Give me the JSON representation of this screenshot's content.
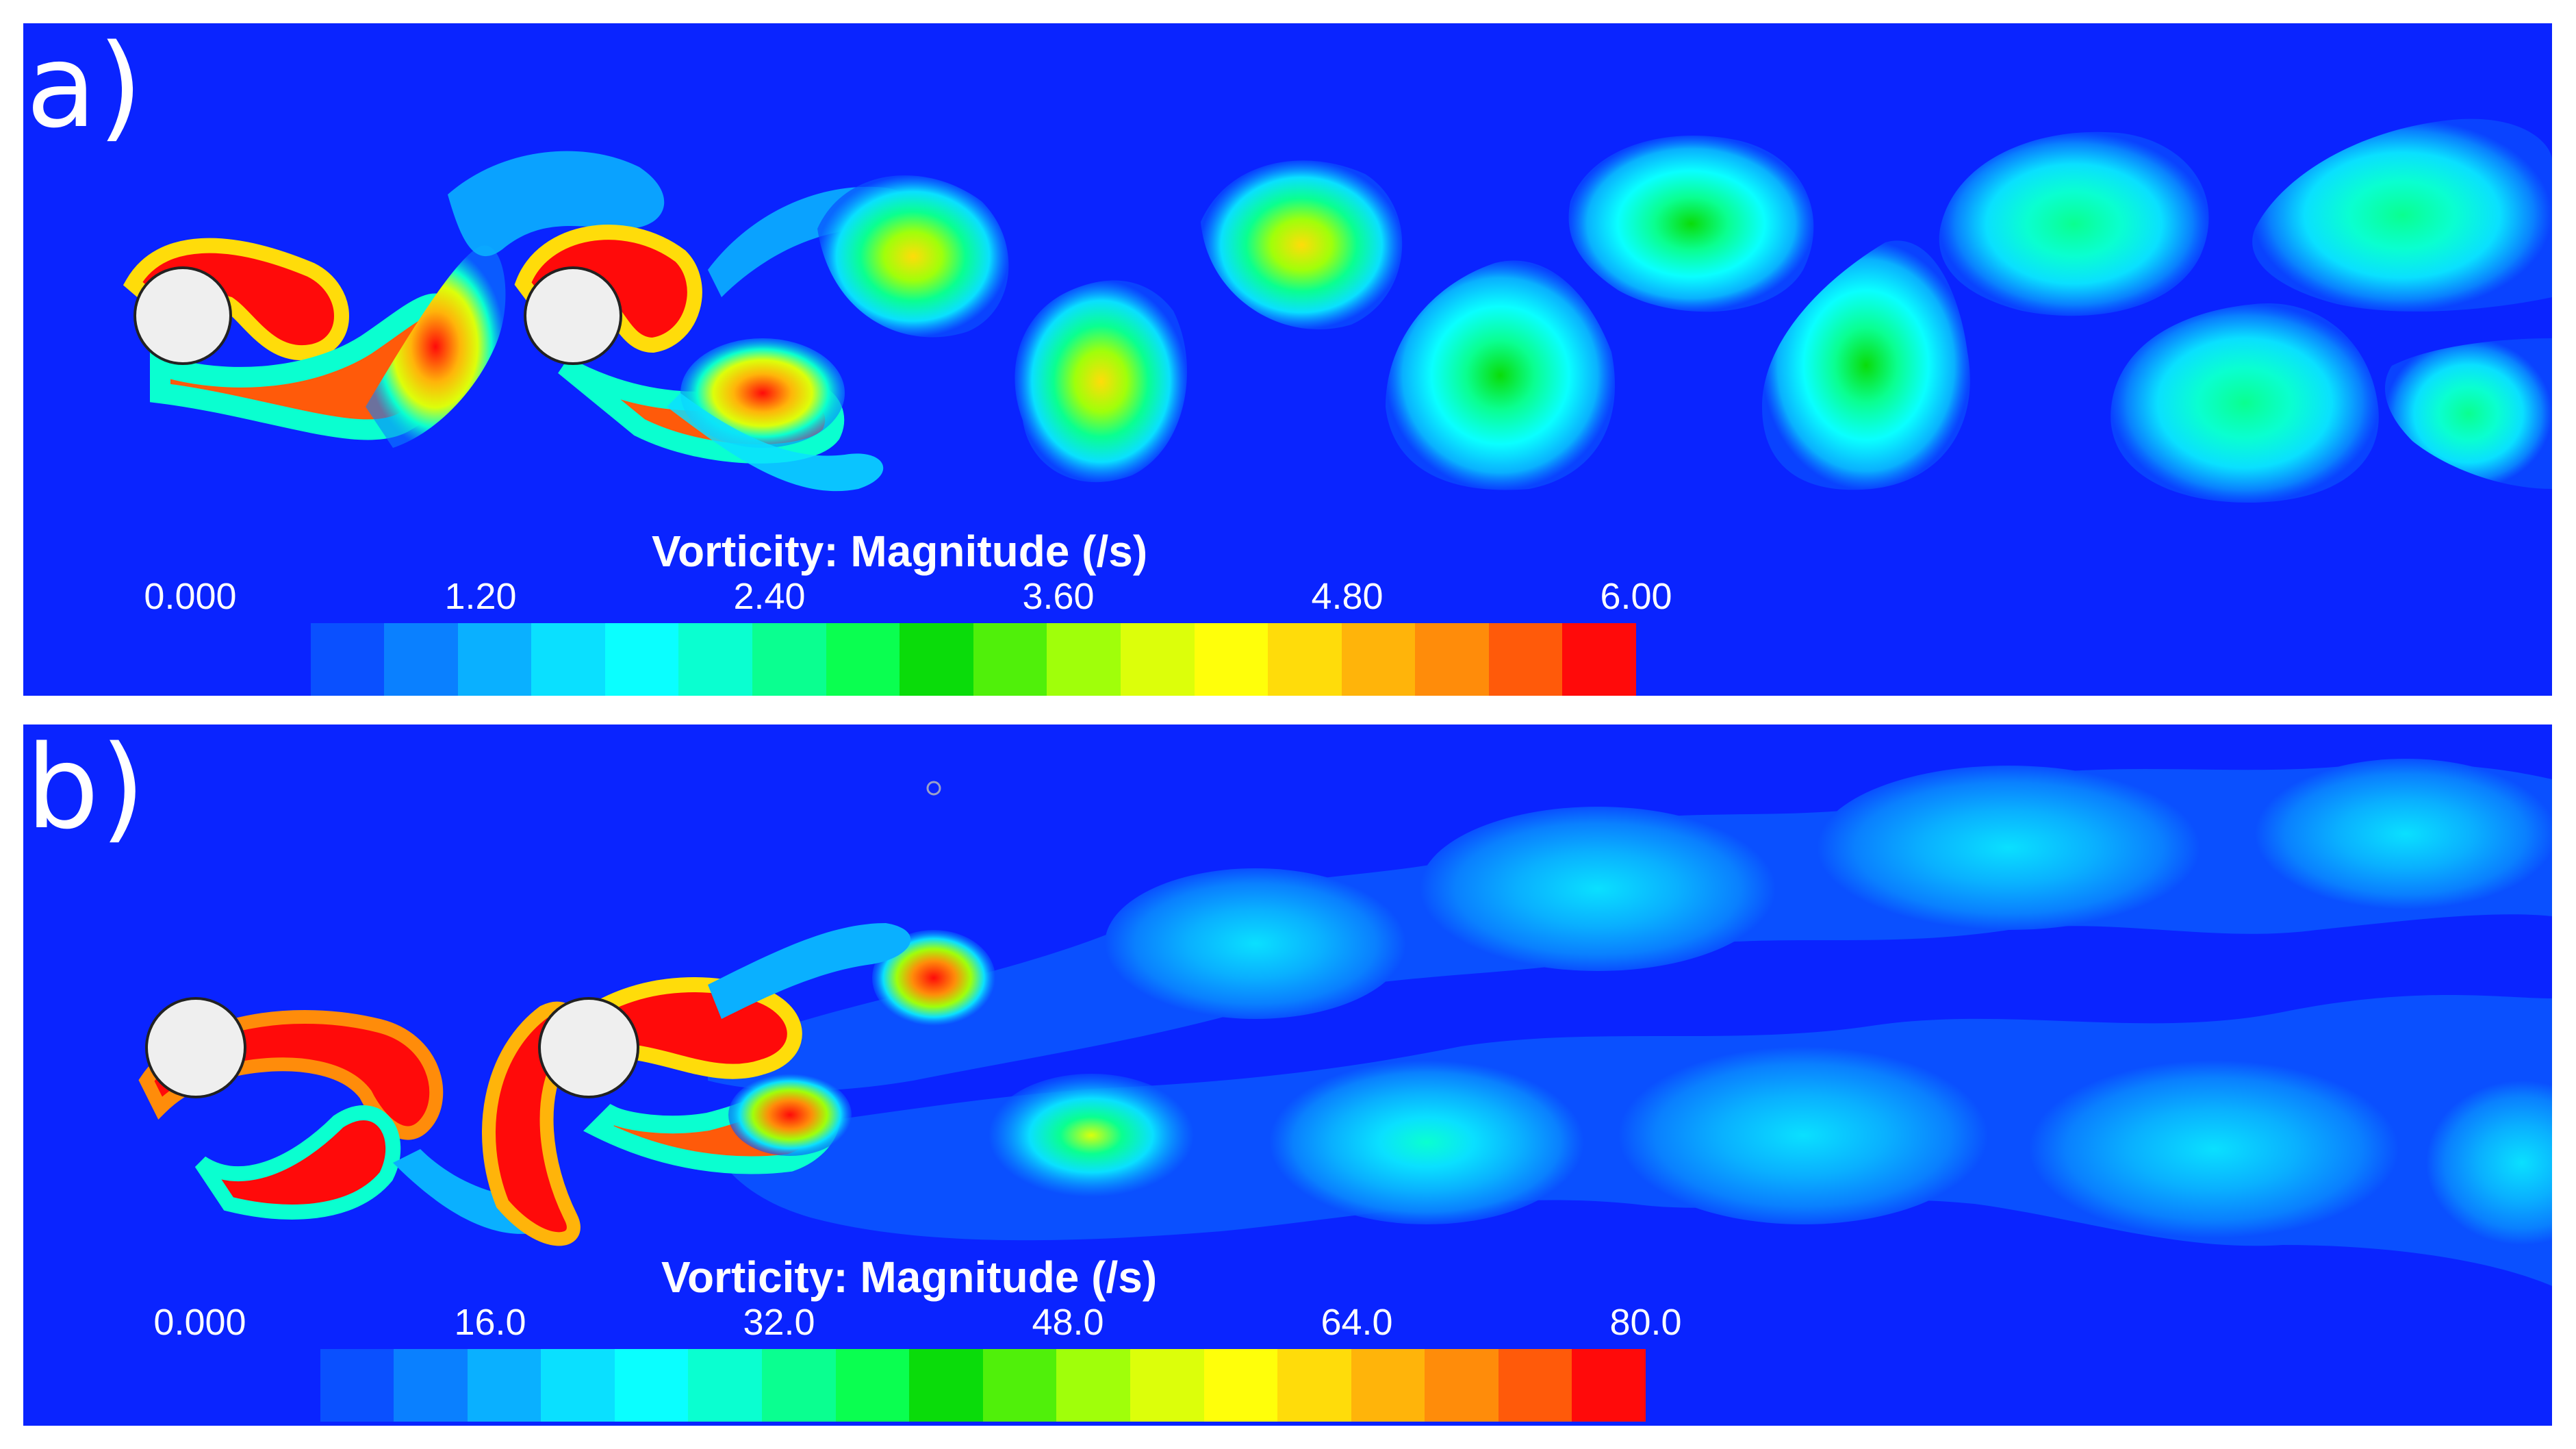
{
  "panels": [
    {
      "label": "a)",
      "colorbar": {
        "title": "Vorticity: Magnitude (/s)",
        "ticks": [
          "0.000",
          "1.20",
          "2.40",
          "3.60",
          "4.80",
          "6.00"
        ],
        "range": [
          0,
          6.0
        ]
      }
    },
    {
      "label": "b)",
      "colorbar": {
        "title": "Vorticity: Magnitude (/s)",
        "ticks": [
          "0.000",
          "16.0",
          "32.0",
          "48.0",
          "64.0",
          "80.0"
        ],
        "range": [
          0,
          80.0
        ]
      }
    }
  ],
  "colors": {
    "background": "#0a24ff",
    "cylinder": "#efefef",
    "colormap": [
      "#0a24ff",
      "#0a50ff",
      "#0a80ff",
      "#0ab0ff",
      "#0ae0ff",
      "#0affff",
      "#0affd0",
      "#0aff90",
      "#0aff50",
      "#0adc0a",
      "#50f00a",
      "#a0ff0a",
      "#dcff0a",
      "#ffff0a",
      "#ffdc0a",
      "#ffb40a",
      "#ff8c0a",
      "#ff5a0a",
      "#ff0a0a"
    ]
  }
}
